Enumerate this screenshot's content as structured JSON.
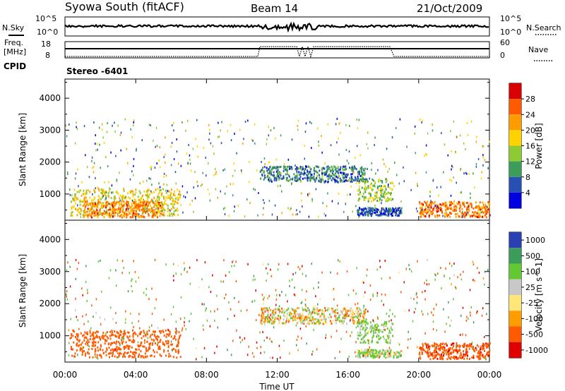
{
  "header": {
    "station": "Syowa South (fitACF)",
    "beam": "Beam 14",
    "date": "21/Oct/2009"
  },
  "top_panels": {
    "nsky_label": "N.Sky",
    "nsky_ticks": [
      "10^5",
      "10^0"
    ],
    "nsearch_label": "N.Search",
    "nsearch_ticks": [
      "10^5",
      "10^0"
    ],
    "freq_label": "Freq.",
    "freq_unit": "[MHz]",
    "freq_ticks": [
      "18",
      "8"
    ],
    "nave_label": "Nave",
    "nave_ticks": [
      "60",
      "0"
    ],
    "cpid_label": "CPID",
    "cpid_value": "Stereo -6401"
  },
  "chart_data": [
    {
      "type": "heatmap",
      "title": "",
      "xlabel": "",
      "ylabel": "Slant Range [km]",
      "xlim": [
        0,
        24
      ],
      "ylim": [
        180,
        4600
      ],
      "x_ticks": [
        "00:00",
        "04:00",
        "08:00",
        "12:00",
        "16:00",
        "20:00",
        "00:00"
      ],
      "y_ticks": [
        "1000",
        "2000",
        "3000",
        "4000"
      ],
      "colorbar": {
        "label": "Power [dB]",
        "ticks": [
          "28",
          "24",
          "20",
          "16",
          "12",
          "8",
          "4"
        ],
        "colors": [
          "#d80000",
          "#ff5a00",
          "#ff9c00",
          "#ffd200",
          "#8ccc32",
          "#3c9c5a",
          "#2850b4",
          "#0000e0"
        ]
      },
      "echo_regions": [
        {
          "t": [
            0.3,
            6.5
          ],
          "range": [
            350,
            1200
          ],
          "level": 18
        },
        {
          "t": [
            1.0,
            5.5
          ],
          "range": [
            300,
            800
          ],
          "level": 24
        },
        {
          "t": [
            11.0,
            17.0
          ],
          "range": [
            1400,
            1900
          ],
          "level": 8
        },
        {
          "t": [
            16.5,
            18.5
          ],
          "range": [
            800,
            1500
          ],
          "level": 14
        },
        {
          "t": [
            16.5,
            19.0
          ],
          "range": [
            350,
            600
          ],
          "level": 6
        },
        {
          "t": [
            20.0,
            24.0
          ],
          "range": [
            300,
            800
          ],
          "level": 24
        }
      ]
    },
    {
      "type": "heatmap",
      "title": "",
      "xlabel": "Time UT",
      "ylabel": "Slant Range [km]",
      "xlim": [
        0,
        24
      ],
      "ylim": [
        180,
        4600
      ],
      "x_ticks": [
        "00:00",
        "04:00",
        "08:00",
        "12:00",
        "16:00",
        "20:00",
        "00:00"
      ],
      "y_ticks": [
        "1000",
        "2000",
        "3000",
        "4000"
      ],
      "colorbar": {
        "label": "Velocity [m s^-1]",
        "ticks": [
          "1000",
          "500",
          "100",
          "25",
          "-25",
          "-100",
          "-500",
          "-1000"
        ],
        "colors": [
          "#2840b4",
          "#3c9c5a",
          "#64c832",
          "#c8c8c8",
          "#ffe678",
          "#ff9c00",
          "#ff5a00",
          "#e00000"
        ]
      },
      "echo_regions": [
        {
          "t": [
            0.3,
            6.5
          ],
          "range": [
            350,
            1200
          ],
          "level": -300
        },
        {
          "t": [
            11.0,
            17.0
          ],
          "range": [
            1400,
            1900
          ],
          "level": 0
        },
        {
          "t": [
            16.5,
            18.5
          ],
          "range": [
            800,
            1500
          ],
          "level": 150
        },
        {
          "t": [
            16.5,
            19.0
          ],
          "range": [
            350,
            600
          ],
          "level": 100
        },
        {
          "t": [
            20.0,
            24.0
          ],
          "range": [
            300,
            800
          ],
          "level": -400
        }
      ]
    }
  ]
}
